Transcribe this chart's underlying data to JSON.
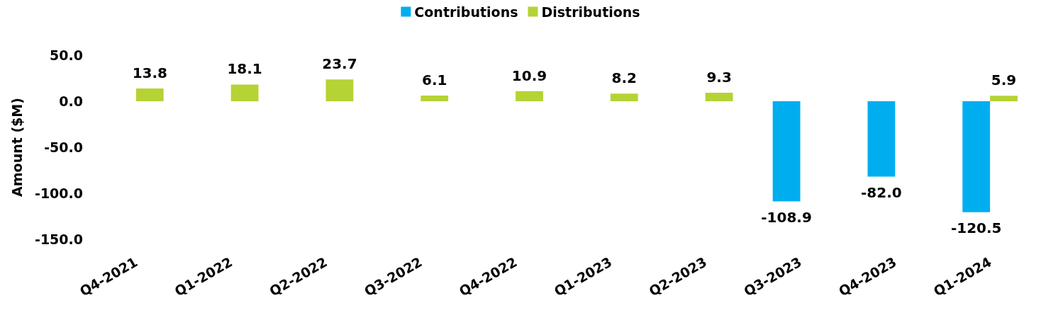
{
  "chart_data": {
    "type": "bar",
    "ylabel": "Amount ($M)",
    "categories": [
      "Q4-2021",
      "Q1-2022",
      "Q2-2022",
      "Q3-2022",
      "Q4-2022",
      "Q1-2023",
      "Q2-2023",
      "Q3-2023",
      "Q4-2023",
      "Q1-2024"
    ],
    "series": [
      {
        "name": "Contributions",
        "color": "#00aeef",
        "values": [
          null,
          null,
          null,
          null,
          null,
          null,
          null,
          -108.9,
          -82.0,
          -120.5
        ],
        "value_labels": [
          null,
          null,
          null,
          null,
          null,
          null,
          null,
          "-108.9",
          "-82.0",
          "-120.5"
        ]
      },
      {
        "name": "Distributions",
        "color": "#b5d334",
        "values": [
          13.8,
          18.1,
          23.7,
          6.1,
          10.9,
          8.2,
          9.3,
          null,
          null,
          5.9
        ],
        "value_labels": [
          "13.8",
          "18.1",
          "23.7",
          "6.1",
          "10.9",
          "8.2",
          "9.3",
          null,
          null,
          "5.9"
        ]
      }
    ],
    "ylim": [
      -150,
      50
    ],
    "yticks": [
      {
        "value": -150,
        "label": "-150.0"
      },
      {
        "value": -100,
        "label": "-100.0"
      },
      {
        "value": -50,
        "label": "-50.0"
      },
      {
        "value": 0,
        "label": "0.0"
      },
      {
        "value": 50,
        "label": "50.0"
      }
    ],
    "grid": false,
    "legend": "top"
  }
}
